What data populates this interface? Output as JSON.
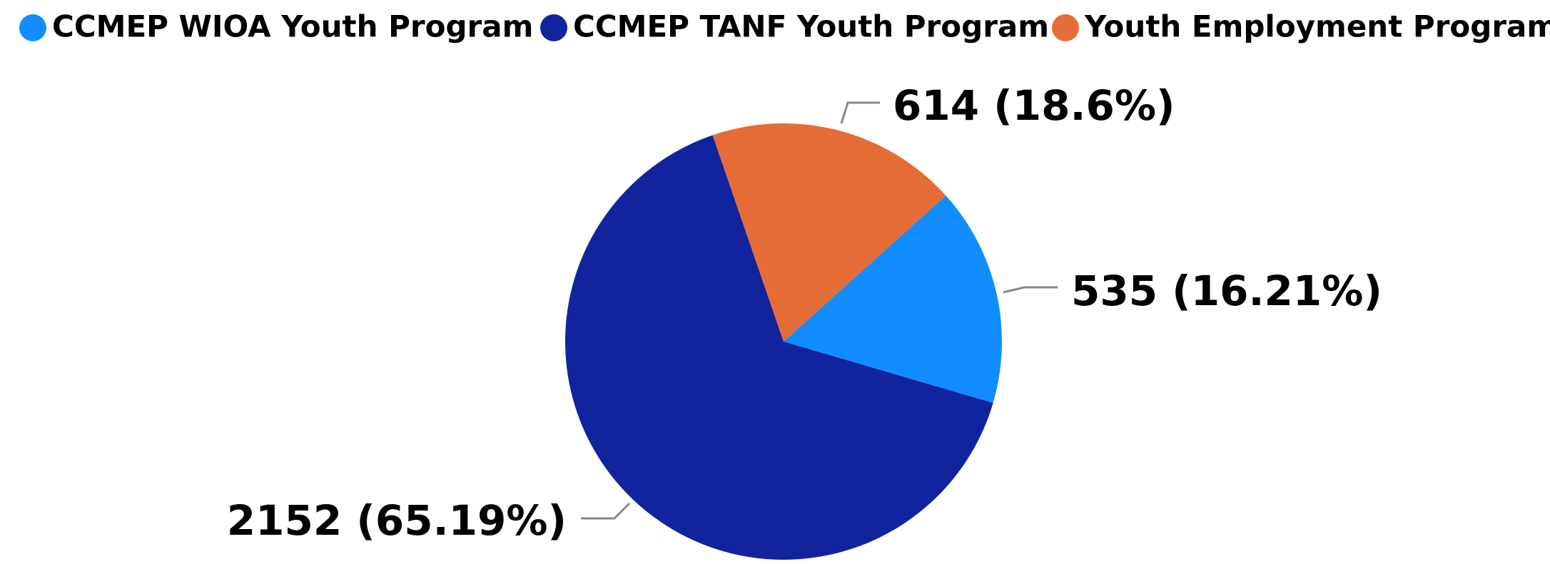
{
  "chart_data": {
    "type": "pie",
    "categories": [
      "CCMEP WIOA Youth Program",
      "CCMEP TANF Youth Program",
      "Youth Employment Program"
    ],
    "values": [
      535,
      2152,
      614
    ],
    "value_labels": [
      "535 (16.21%)",
      "2152 (65.19%)",
      "614 (18.6%)"
    ],
    "colors": [
      "#118dff",
      "#12239e",
      "#e66c37"
    ],
    "legend": "top-left"
  }
}
